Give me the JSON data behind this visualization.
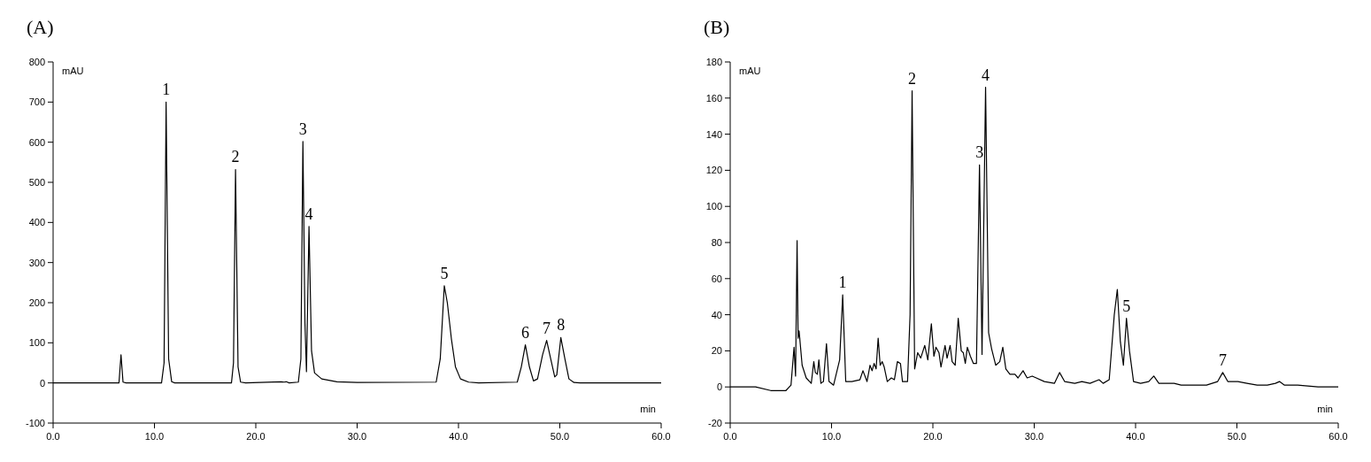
{
  "chart_data": [
    {
      "type": "line",
      "title": "(A)",
      "xlabel": "min",
      "ylabel": "mAU",
      "grid": false,
      "marker": "none",
      "line_style": "solid",
      "xlim": [
        0,
        60
      ],
      "xticks": [
        {
          "value": 0,
          "label": "0.0"
        },
        {
          "value": 10,
          "label": "10.0"
        },
        {
          "value": 20,
          "label": "20.0"
        },
        {
          "value": 30,
          "label": "30.0"
        },
        {
          "value": 40,
          "label": "40.0"
        },
        {
          "value": 50,
          "label": "50.0"
        },
        {
          "value": 60,
          "label": "60.0"
        }
      ],
      "ylim": [
        -100,
        800
      ],
      "yticks": [
        -100,
        0,
        100,
        200,
        300,
        400,
        500,
        600,
        700,
        800
      ],
      "series": [
        {
          "color": "#000000",
          "x": [
            0,
            6.5,
            6.7,
            6.9,
            7.2,
            10.7,
            10.95,
            11.15,
            11.4,
            11.7,
            12,
            17.6,
            17.8,
            18.0,
            18.25,
            18.5,
            19,
            22.5,
            22.8,
            23.0,
            23.3,
            24.2,
            24.45,
            24.65,
            24.85,
            25.0,
            25.25,
            25.5,
            25.8,
            26.5,
            28,
            30,
            37.8,
            38.2,
            38.6,
            38.9,
            39.3,
            39.7,
            40.2,
            41,
            42,
            45.8,
            46.2,
            46.6,
            47.0,
            47.4,
            47.8,
            48.3,
            48.7,
            49.1,
            49.5,
            49.7,
            50.1,
            50.5,
            50.9,
            51.4,
            52,
            60
          ],
          "values": [
            0,
            0,
            70,
            2,
            0,
            0,
            50,
            700,
            60,
            3,
            0,
            0,
            50,
            532,
            40,
            2,
            0,
            3,
            2,
            3,
            0,
            2,
            60,
            602,
            150,
            28,
            390,
            80,
            25,
            10,
            3,
            1,
            2,
            60,
            242,
            200,
            110,
            40,
            10,
            2,
            0,
            2,
            40,
            95,
            40,
            5,
            10,
            70,
            106,
            60,
            15,
            20,
            113,
            60,
            10,
            1,
            0,
            0
          ]
        }
      ],
      "annotations": [
        {
          "text": "1",
          "x": 11.15,
          "y": 700
        },
        {
          "text": "2",
          "x": 18.0,
          "y": 532
        },
        {
          "text": "3",
          "x": 24.65,
          "y": 602
        },
        {
          "text": "4",
          "x": 25.25,
          "y": 390
        },
        {
          "text": "5",
          "x": 38.6,
          "y": 242
        },
        {
          "text": "6",
          "x": 46.6,
          "y": 95
        },
        {
          "text": "7",
          "x": 48.7,
          "y": 106
        },
        {
          "text": "8",
          "x": 50.1,
          "y": 113
        }
      ]
    },
    {
      "type": "line",
      "title": "(B)",
      "xlabel": "min",
      "ylabel": "mAU",
      "grid": false,
      "marker": "none",
      "line_style": "solid",
      "xlim": [
        0,
        60
      ],
      "xticks": [
        {
          "value": 0,
          "label": "0.0"
        },
        {
          "value": 10,
          "label": "10.0"
        },
        {
          "value": 20,
          "label": "20.0"
        },
        {
          "value": 30,
          "label": "30.0"
        },
        {
          "value": 40,
          "label": "40.0"
        },
        {
          "value": 50,
          "label": "50.0"
        },
        {
          "value": 60,
          "label": "60.0"
        }
      ],
      "ylim": [
        -20,
        180
      ],
      "yticks": [
        -20,
        0,
        20,
        40,
        60,
        80,
        100,
        120,
        140,
        160,
        180
      ],
      "series": [
        {
          "color": "#000000",
          "x": [
            0,
            2.5,
            4,
            5.5,
            6.0,
            6.3,
            6.45,
            6.6,
            6.7,
            6.8,
            7.1,
            7.5,
            8.0,
            8.25,
            8.4,
            8.6,
            8.75,
            8.95,
            9.2,
            9.5,
            9.75,
            10.2,
            10.8,
            11.1,
            11.4,
            12,
            12.8,
            13.1,
            13.5,
            13.8,
            14.0,
            14.2,
            14.4,
            14.6,
            14.8,
            15.0,
            15.2,
            15.5,
            15.9,
            16.2,
            16.5,
            16.8,
            17.0,
            17.5,
            17.75,
            17.95,
            18.2,
            18.5,
            18.8,
            19.2,
            19.5,
            19.85,
            20.1,
            20.3,
            20.6,
            20.8,
            21.2,
            21.4,
            21.7,
            21.9,
            22.2,
            22.5,
            22.8,
            23.0,
            23.2,
            23.4,
            23.7,
            24.0,
            24.3,
            24.6,
            24.85,
            25.2,
            25.5,
            25.8,
            26.2,
            26.6,
            26.9,
            27.2,
            27.6,
            28.1,
            28.4,
            28.9,
            29.3,
            29.8,
            30.2,
            31,
            32,
            32.5,
            33,
            34,
            34.7,
            35.5,
            36.4,
            36.8,
            37.4,
            37.9,
            38.2,
            38.5,
            38.8,
            39.1,
            39.4,
            39.8,
            40.5,
            41.3,
            41.8,
            42.3,
            43.8,
            44.5,
            47,
            48.1,
            48.6,
            49.1,
            50.1,
            51,
            52,
            53,
            53.8,
            54.2,
            54.7,
            56,
            58,
            60
          ],
          "values": [
            0,
            0,
            -2,
            -2,
            1,
            22,
            6,
            81,
            27,
            31,
            12,
            5,
            2,
            14,
            8,
            7,
            15,
            2,
            3,
            24,
            3,
            1,
            15,
            51,
            3,
            3,
            4,
            9,
            3,
            12,
            9,
            13,
            10,
            27,
            12,
            14,
            11,
            3,
            5,
            4,
            14,
            13,
            3,
            3,
            40,
            164,
            10,
            19,
            16,
            23,
            15,
            35,
            17,
            22,
            19,
            11,
            23,
            16,
            23,
            14,
            12,
            38,
            20,
            19,
            13,
            22,
            17,
            13,
            13,
            123,
            18,
            166,
            30,
            21,
            12,
            14,
            22,
            10,
            7,
            7,
            5,
            9,
            5,
            6,
            5,
            3,
            2,
            8,
            3,
            2,
            3,
            2,
            4,
            2,
            4,
            40,
            54,
            25,
            12,
            38,
            20,
            3,
            2,
            3,
            6,
            2,
            2,
            1,
            1,
            3,
            8,
            3,
            3,
            2,
            1,
            1,
            2,
            3,
            1,
            1,
            0,
            0
          ]
        }
      ],
      "annotations": [
        {
          "text": "1",
          "x": 11.1,
          "y": 51
        },
        {
          "text": "2",
          "x": 17.95,
          "y": 164
        },
        {
          "text": "3",
          "x": 24.6,
          "y": 123
        },
        {
          "text": "4",
          "x": 25.2,
          "y": 166
        },
        {
          "text": "5",
          "x": 39.1,
          "y": 38
        },
        {
          "text": "7",
          "x": 48.6,
          "y": 8
        }
      ]
    }
  ]
}
